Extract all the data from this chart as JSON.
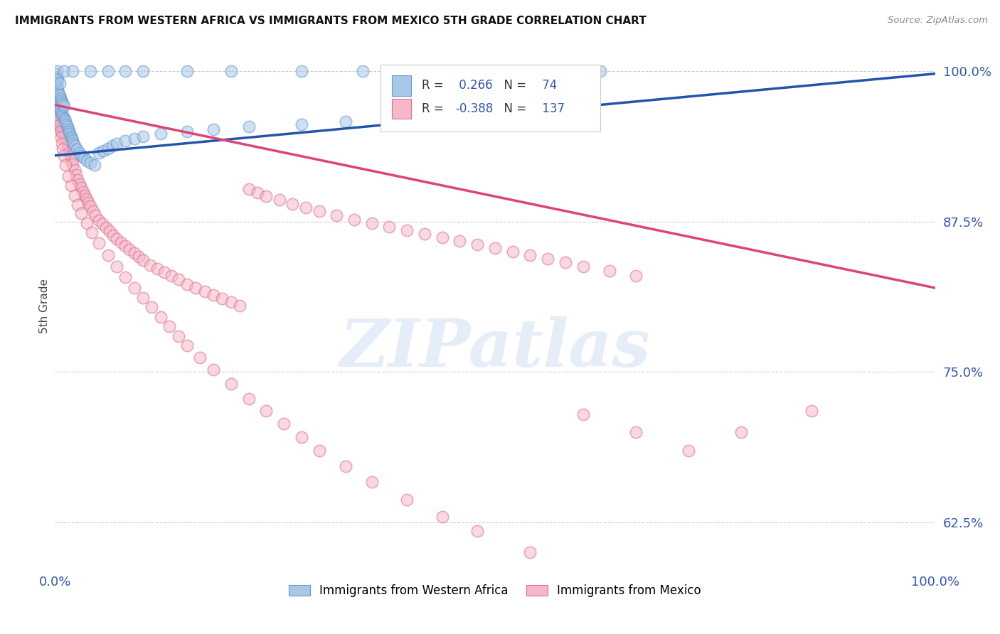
{
  "title": "IMMIGRANTS FROM WESTERN AFRICA VS IMMIGRANTS FROM MEXICO 5TH GRADE CORRELATION CHART",
  "source": "Source: ZipAtlas.com",
  "ylabel": "5th Grade",
  "ytick_labels": [
    "62.5%",
    "75.0%",
    "87.5%",
    "100.0%"
  ],
  "ytick_values": [
    0.625,
    0.75,
    0.875,
    1.0
  ],
  "legend_blue_label": "Immigrants from Western Africa",
  "legend_pink_label": "Immigrants from Mexico",
  "R_blue": 0.266,
  "N_blue": 74,
  "R_pink": -0.388,
  "N_pink": 137,
  "blue_color": "#a8c8e8",
  "blue_edge_color": "#6699cc",
  "pink_color": "#f5b8c8",
  "pink_edge_color": "#e07090",
  "blue_line_color": "#2255aa",
  "pink_line_color": "#dd4477",
  "watermark_color": "#c5d8f0",
  "watermark": "ZIPatlas",
  "xlim": [
    0.0,
    1.0
  ],
  "ylim": [
    0.585,
    1.025
  ],
  "blue_line": {
    "x0": 0.0,
    "y0": 0.93,
    "x1": 1.0,
    "y1": 0.998
  },
  "pink_line": {
    "x0": 0.0,
    "y0": 0.972,
    "x1": 1.0,
    "y1": 0.82
  },
  "blue_scatter_x": [
    0.001,
    0.001,
    0.001,
    0.002,
    0.002,
    0.002,
    0.002,
    0.003,
    0.003,
    0.003,
    0.004,
    0.004,
    0.005,
    0.005,
    0.005,
    0.006,
    0.006,
    0.007,
    0.007,
    0.008,
    0.008,
    0.009,
    0.009,
    0.01,
    0.01,
    0.011,
    0.012,
    0.013,
    0.014,
    0.015,
    0.016,
    0.017,
    0.018,
    0.019,
    0.02,
    0.021,
    0.022,
    0.025,
    0.028,
    0.03,
    0.033,
    0.036,
    0.04,
    0.045,
    0.05,
    0.055,
    0.06,
    0.065,
    0.07,
    0.08,
    0.09,
    0.1,
    0.12,
    0.15,
    0.18,
    0.22,
    0.28,
    0.33,
    0.38,
    0.43,
    0.01,
    0.02,
    0.04,
    0.06,
    0.08,
    0.1,
    0.15,
    0.2,
    0.28,
    0.35,
    0.43,
    0.5,
    0.55,
    0.62
  ],
  "blue_scatter_y": [
    0.98,
    0.992,
    0.998,
    0.978,
    0.988,
    0.995,
    1.0,
    0.975,
    0.985,
    0.993,
    0.972,
    0.982,
    0.97,
    0.98,
    0.99,
    0.968,
    0.978,
    0.966,
    0.976,
    0.964,
    0.974,
    0.963,
    0.973,
    0.961,
    0.971,
    0.96,
    0.958,
    0.956,
    0.954,
    0.952,
    0.95,
    0.948,
    0.946,
    0.944,
    0.942,
    0.94,
    0.938,
    0.935,
    0.932,
    0.93,
    0.928,
    0.926,
    0.924,
    0.922,
    0.932,
    0.934,
    0.936,
    0.938,
    0.94,
    0.942,
    0.944,
    0.946,
    0.948,
    0.95,
    0.952,
    0.954,
    0.956,
    0.958,
    0.96,
    0.962,
    1.0,
    1.0,
    1.0,
    1.0,
    1.0,
    1.0,
    1.0,
    1.0,
    1.0,
    1.0,
    1.0,
    1.0,
    1.0,
    1.0
  ],
  "pink_scatter_x": [
    0.001,
    0.002,
    0.002,
    0.003,
    0.003,
    0.003,
    0.004,
    0.004,
    0.005,
    0.005,
    0.006,
    0.006,
    0.007,
    0.007,
    0.008,
    0.008,
    0.009,
    0.009,
    0.01,
    0.01,
    0.011,
    0.012,
    0.013,
    0.014,
    0.015,
    0.016,
    0.017,
    0.018,
    0.019,
    0.02,
    0.022,
    0.024,
    0.026,
    0.028,
    0.03,
    0.032,
    0.034,
    0.036,
    0.038,
    0.04,
    0.043,
    0.046,
    0.05,
    0.054,
    0.058,
    0.062,
    0.066,
    0.07,
    0.075,
    0.08,
    0.085,
    0.09,
    0.095,
    0.1,
    0.108,
    0.116,
    0.124,
    0.132,
    0.14,
    0.15,
    0.16,
    0.17,
    0.18,
    0.19,
    0.2,
    0.21,
    0.22,
    0.23,
    0.24,
    0.255,
    0.27,
    0.285,
    0.3,
    0.32,
    0.34,
    0.36,
    0.38,
    0.4,
    0.42,
    0.44,
    0.46,
    0.48,
    0.5,
    0.52,
    0.54,
    0.56,
    0.58,
    0.6,
    0.63,
    0.66,
    0.002,
    0.003,
    0.004,
    0.005,
    0.006,
    0.007,
    0.008,
    0.009,
    0.01,
    0.012,
    0.015,
    0.018,
    0.022,
    0.026,
    0.03,
    0.036,
    0.042,
    0.05,
    0.06,
    0.07,
    0.08,
    0.09,
    0.1,
    0.11,
    0.12,
    0.13,
    0.14,
    0.15,
    0.165,
    0.18,
    0.2,
    0.22,
    0.24,
    0.26,
    0.28,
    0.3,
    0.33,
    0.36,
    0.4,
    0.44,
    0.48,
    0.54,
    0.6,
    0.66,
    0.72,
    0.78,
    0.86
  ],
  "pink_scatter_y": [
    0.968,
    0.975,
    0.965,
    0.972,
    0.962,
    0.958,
    0.968,
    0.958,
    0.966,
    0.956,
    0.964,
    0.954,
    0.962,
    0.952,
    0.96,
    0.95,
    0.958,
    0.948,
    0.955,
    0.945,
    0.95,
    0.947,
    0.944,
    0.941,
    0.938,
    0.935,
    0.932,
    0.929,
    0.926,
    0.923,
    0.918,
    0.914,
    0.91,
    0.906,
    0.903,
    0.9,
    0.897,
    0.894,
    0.891,
    0.888,
    0.884,
    0.88,
    0.876,
    0.873,
    0.87,
    0.867,
    0.864,
    0.861,
    0.858,
    0.855,
    0.852,
    0.849,
    0.846,
    0.843,
    0.839,
    0.836,
    0.833,
    0.83,
    0.827,
    0.823,
    0.82,
    0.817,
    0.814,
    0.811,
    0.808,
    0.805,
    0.902,
    0.899,
    0.896,
    0.893,
    0.89,
    0.887,
    0.884,
    0.88,
    0.877,
    0.874,
    0.871,
    0.868,
    0.865,
    0.862,
    0.859,
    0.856,
    0.853,
    0.85,
    0.847,
    0.844,
    0.841,
    0.838,
    0.834,
    0.83,
    0.97,
    0.965,
    0.96,
    0.955,
    0.95,
    0.945,
    0.94,
    0.935,
    0.93,
    0.922,
    0.913,
    0.905,
    0.897,
    0.889,
    0.882,
    0.874,
    0.866,
    0.857,
    0.847,
    0.838,
    0.829,
    0.82,
    0.812,
    0.804,
    0.796,
    0.788,
    0.78,
    0.772,
    0.762,
    0.752,
    0.74,
    0.728,
    0.718,
    0.707,
    0.696,
    0.685,
    0.672,
    0.659,
    0.644,
    0.63,
    0.618,
    0.6,
    0.715,
    0.7,
    0.685,
    0.7,
    0.718
  ]
}
